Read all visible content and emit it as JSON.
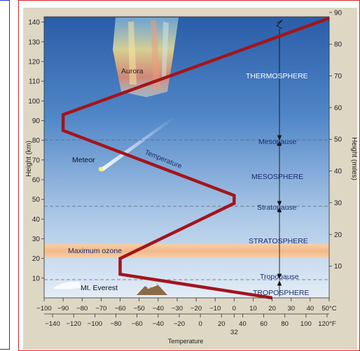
{
  "diagram": {
    "layers": {
      "thermosphere": "THERMOSPHERE",
      "mesopause": "Mesopause",
      "mesosphere": "MESOSPHERE",
      "stratopause": "Stratopause",
      "stratosphere": "STRATOSPHERE",
      "tropopause": "Tropopause",
      "troposphere": "TROPOSPHERE"
    },
    "features": {
      "aurora": "Aurora",
      "meteor": "Meteor",
      "temperature": "Temperature",
      "maximum_ozone": "Maximum ozone",
      "everest": "Mt. Everest"
    },
    "axes": {
      "left_label": "Height (km)",
      "right_label": "Height (miles)",
      "bottom_label": "Temperature",
      "km_ticks": [
        "10",
        "20",
        "30",
        "40",
        "50",
        "60",
        "70",
        "80",
        "90",
        "100",
        "110",
        "120",
        "130",
        "140"
      ],
      "mile_ticks": [
        "10",
        "20",
        "30",
        "40",
        "50",
        "60",
        "70",
        "80",
        "90"
      ],
      "celsius_ticks": [
        "−100",
        "−90",
        "−80",
        "−70",
        "−60",
        "−50",
        "−40",
        "−30",
        "−20",
        "−10",
        "0",
        "10",
        "20",
        "30",
        "40",
        "50°C"
      ],
      "fahrenheit_ticks": [
        "−140",
        "−120",
        "−100",
        "−80",
        "−60",
        "−40",
        "−20",
        "0",
        "20",
        "40",
        "60",
        "80",
        "100",
        "120°F"
      ],
      "freezing_label": "32"
    },
    "colors": {
      "temperature_line": "#a3151c",
      "ozone_band": "#f3b98a",
      "sky_top": "#2a5da8",
      "sky_bottom": "#e4edf6"
    },
    "temperature_profile": [
      {
        "temp_c": 20,
        "height_km": 0
      },
      {
        "temp_c": -60,
        "height_km": 12
      },
      {
        "temp_c": -60,
        "height_km": 20
      },
      {
        "temp_c": 0,
        "height_km": 48
      },
      {
        "temp_c": 0,
        "height_km": 52
      },
      {
        "temp_c": -90,
        "height_km": 85
      },
      {
        "temp_c": -90,
        "height_km": 93
      },
      {
        "temp_c": 50,
        "height_km": 142
      }
    ]
  }
}
